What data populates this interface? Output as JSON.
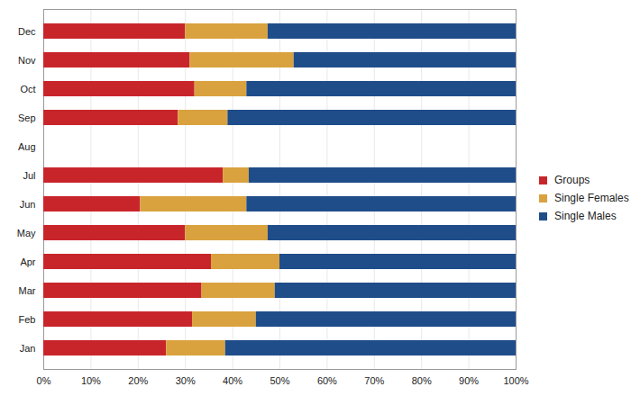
{
  "chart_data": {
    "type": "bar",
    "orientation": "horizontal",
    "stacked": true,
    "grid": true,
    "legend": "right",
    "categories": [
      "Jan",
      "Feb",
      "Mar",
      "Apr",
      "May",
      "Jun",
      "Jul",
      "Aug",
      "Sep",
      "Oct",
      "Nov",
      "Dec"
    ],
    "series": [
      {
        "name": "Groups",
        "color": "#c8252b",
        "values": [
          26,
          31.5,
          33.5,
          35.5,
          30,
          20.5,
          38,
          null,
          28.5,
          32,
          31,
          30
        ]
      },
      {
        "name": "Single Females",
        "color": "#d9a23e",
        "values": [
          12.5,
          13.5,
          15.5,
          14.5,
          17.5,
          22.5,
          5.5,
          null,
          10.5,
          11,
          22,
          17.5
        ]
      },
      {
        "name": "Single Males",
        "color": "#1f4d8a",
        "values": [
          61.5,
          55,
          51,
          50,
          52.5,
          57,
          56.5,
          null,
          61,
          57,
          47,
          52.5
        ]
      }
    ],
    "xlim": [
      0,
      100
    ],
    "xticks": [
      {
        "value": 0,
        "label": "0%"
      },
      {
        "value": 10,
        "label": "10%"
      },
      {
        "value": 20,
        "label": "20%"
      },
      {
        "value": 30,
        "label": "30%"
      },
      {
        "value": 40,
        "label": "40%"
      },
      {
        "value": 50,
        "label": "50%"
      },
      {
        "value": 60,
        "label": "60%"
      },
      {
        "value": 70,
        "label": "70%"
      },
      {
        "value": 80,
        "label": "80%"
      },
      {
        "value": 90,
        "label": "90%"
      },
      {
        "value": 100,
        "label": "100%"
      }
    ]
  }
}
